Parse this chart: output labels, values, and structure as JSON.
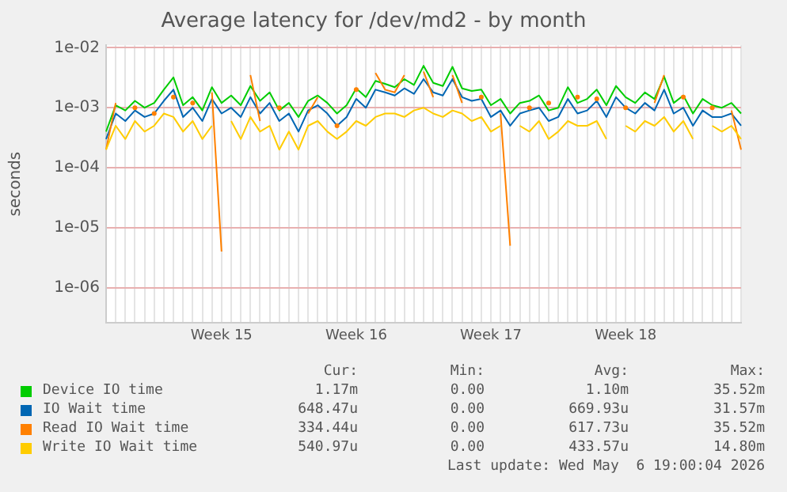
{
  "chart_data": {
    "type": "line",
    "title": "Average latency for /dev/md2 - by month",
    "ylabel": "seconds",
    "log": "y",
    "grid": true,
    "legend": "bottom",
    "marker": "none",
    "line_style": "solid",
    "categories": [
      null,
      null,
      null,
      null,
      null,
      null,
      null,
      null,
      null,
      null,
      null,
      null,
      "Week 15",
      null,
      null,
      null,
      null,
      null,
      null,
      null,
      null,
      null,
      null,
      null,
      null,
      null,
      "Week 16",
      null,
      null,
      null,
      null,
      null,
      null,
      null,
      null,
      null,
      null,
      null,
      null,
      null,
      "Week 17",
      null,
      null,
      null,
      null,
      null,
      null,
      null,
      null,
      null,
      null,
      null,
      null,
      null,
      "Week 18",
      null,
      null,
      null,
      null,
      null,
      null,
      null,
      null,
      null,
      null,
      null,
      null
    ],
    "ylim": [
      2.6e-07,
      0.011
    ],
    "yticks": [
      {
        "value": 1e-06,
        "label": "1e-06"
      },
      {
        "value": 1e-05,
        "label": "1e-05"
      },
      {
        "value": 0.0001,
        "label": "1e-04"
      },
      {
        "value": 0.001,
        "label": "1e-03"
      },
      {
        "value": 0.01,
        "label": "1e-02"
      }
    ],
    "series": [
      {
        "name": "Device IO time",
        "color": "#00cc00",
        "values": [
          0.0004,
          0.0011,
          0.0009,
          0.0013,
          0.001,
          0.0012,
          0.002,
          0.0032,
          0.0011,
          0.0015,
          0.0009,
          0.0022,
          0.0012,
          0.0016,
          0.0011,
          0.0023,
          0.0013,
          0.0018,
          0.0009,
          0.0012,
          0.0007,
          0.0013,
          0.0016,
          0.0012,
          0.0008,
          0.0011,
          0.0021,
          0.0015,
          0.0028,
          0.0025,
          0.0022,
          0.003,
          0.0024,
          0.005,
          0.0026,
          0.0023,
          0.0048,
          0.0021,
          0.0019,
          0.002,
          0.0011,
          0.0014,
          0.0008,
          0.0012,
          0.0013,
          0.0016,
          0.0009,
          0.001,
          0.0022,
          0.0012,
          0.0014,
          0.002,
          0.0011,
          0.0023,
          0.0015,
          0.0012,
          0.0018,
          0.0014,
          0.0033,
          0.0012,
          0.0016,
          0.0008,
          0.0014,
          0.0011,
          0.001,
          0.0012,
          0.0008
        ]
      },
      {
        "name": "IO Wait time",
        "color": "#0066b3",
        "values": [
          0.0003,
          0.0008,
          0.0006,
          0.0009,
          0.0007,
          0.0008,
          0.0013,
          0.002,
          0.0007,
          0.001,
          0.0006,
          0.0014,
          0.0008,
          0.001,
          0.0007,
          0.0015,
          0.0008,
          0.0012,
          0.0006,
          0.0008,
          0.0004,
          0.0009,
          0.0011,
          0.0008,
          0.0005,
          0.0007,
          0.0014,
          0.001,
          0.002,
          0.0018,
          0.0016,
          0.0021,
          0.0017,
          0.003,
          0.0018,
          0.0016,
          0.003,
          0.0015,
          0.0013,
          0.0014,
          0.0007,
          0.0009,
          0.0005,
          0.0008,
          0.0009,
          0.001,
          0.0006,
          0.0007,
          0.0014,
          0.0008,
          0.0009,
          0.0013,
          0.0007,
          0.0015,
          0.001,
          0.0008,
          0.0012,
          0.0009,
          0.002,
          0.0008,
          0.001,
          0.0005,
          0.0009,
          0.0007,
          0.0007,
          0.0008,
          0.0005
        ]
      },
      {
        "name": "Read IO Wait time",
        "color": "#ff8000",
        "values": [
          0.0002,
          0.0012,
          null,
          0.001,
          null,
          0.0008,
          null,
          0.0015,
          null,
          0.0012,
          null,
          0.0018,
          4e-06,
          null,
          null,
          0.0035,
          0.0006,
          null,
          0.001,
          null,
          null,
          0.0008,
          0.0015,
          null,
          0.0005,
          null,
          0.002,
          null,
          0.0038,
          0.002,
          0.0018,
          0.0035,
          null,
          0.004,
          0.0015,
          null,
          0.0035,
          0.0012,
          null,
          0.0015,
          null,
          0.0008,
          5e-06,
          null,
          0.001,
          null,
          0.0012,
          null,
          null,
          0.0015,
          null,
          0.0014,
          null,
          null,
          0.001,
          null,
          null,
          0.0012,
          0.0035,
          null,
          0.0015,
          null,
          null,
          0.001,
          null,
          0.0009,
          0.0002
        ]
      },
      {
        "name": "Write IO Wait time",
        "color": "#ffcc00",
        "values": [
          0.0002,
          0.0005,
          0.0003,
          0.0006,
          0.0004,
          0.0005,
          0.0008,
          0.0007,
          0.0004,
          0.0006,
          0.0003,
          0.0005,
          null,
          0.0006,
          0.0003,
          0.0007,
          0.0004,
          0.0005,
          0.0002,
          0.0004,
          0.0002,
          0.0005,
          0.0006,
          0.0004,
          0.0003,
          0.0004,
          0.0006,
          0.0005,
          0.0007,
          0.0008,
          0.0008,
          0.0007,
          0.0009,
          0.001,
          0.0008,
          0.0007,
          0.0009,
          0.0008,
          0.0006,
          0.0007,
          0.0004,
          0.0005,
          null,
          0.0005,
          0.0004,
          0.0006,
          0.0003,
          0.0004,
          0.0006,
          0.0005,
          0.0005,
          0.0006,
          0.0003,
          null,
          0.0005,
          0.0004,
          0.0006,
          0.0005,
          0.0007,
          0.0004,
          0.0006,
          0.0003,
          null,
          0.0005,
          0.0004,
          0.0005,
          0.0003
        ]
      }
    ],
    "annotations": [
      "Cur:",
      "Min:",
      "Avg:",
      "Max:",
      "1.17m",
      "0.00",
      "1.10m",
      "35.52m",
      "648.47u",
      "0.00",
      "669.93u",
      "31.57m",
      "334.44u",
      "0.00",
      "617.73u",
      "35.52m",
      "540.97u",
      "0.00",
      "433.57u",
      "14.80m",
      "Last update: Wed May  6 19:00:04 2026"
    ]
  }
}
